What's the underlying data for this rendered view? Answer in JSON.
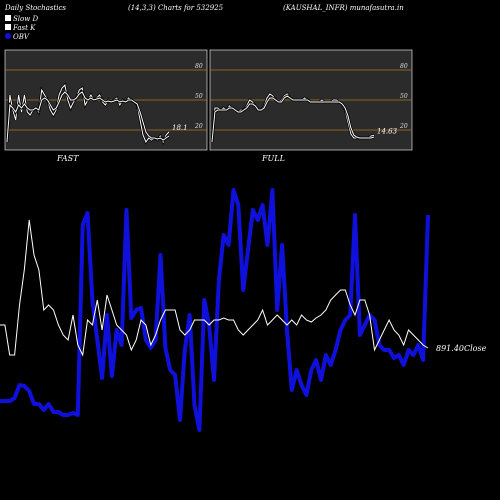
{
  "header": {
    "title": "Daily Stochastics",
    "params": "(14,3,3) Charts for 532925",
    "ticker": "(KAUSHAL_INFR) munafasutra.in"
  },
  "legend": [
    {
      "label": "Slow  D",
      "color": "#ffffff"
    },
    {
      "label": "Fast K",
      "color": "#ffffff"
    },
    {
      "label": "OBV",
      "color": "#1010dd"
    }
  ],
  "colors": {
    "background": "#000000",
    "panel": "#2b2b2b",
    "level_line": "#b07820",
    "line": "#ffffff",
    "obv": "#1010dd"
  },
  "chart_data": [
    {
      "type": "line",
      "title": "FAST",
      "ylim": [
        0,
        100
      ],
      "y_ticks": [
        20,
        50,
        80
      ],
      "x": [
        1,
        2,
        3,
        4,
        5,
        6,
        7,
        8,
        9,
        10,
        11,
        12,
        13,
        14,
        15,
        16,
        17,
        18,
        19,
        20,
        21,
        22,
        23,
        24,
        25,
        26,
        27,
        28,
        29,
        30,
        31,
        32,
        33,
        34,
        35,
        36,
        37,
        38,
        39,
        40,
        41,
        42,
        43,
        44,
        45,
        46,
        47,
        48,
        49,
        50,
        51,
        52,
        53,
        54,
        55,
        56,
        57
      ],
      "series": [
        {
          "name": "Fast K",
          "values": [
            8,
            55,
            40,
            30,
            55,
            38,
            55,
            38,
            35,
            40,
            42,
            38,
            60,
            55,
            50,
            40,
            35,
            40,
            55,
            62,
            65,
            50,
            42,
            48,
            52,
            60,
            62,
            45,
            50,
            55,
            50,
            52,
            55,
            48,
            45,
            50,
            48,
            50,
            52,
            45,
            50,
            48,
            52,
            50,
            48,
            45,
            30,
            15,
            8,
            12,
            10,
            12,
            10,
            14,
            8,
            15,
            18.1
          ]
        },
        {
          "name": "Slow  D",
          "values": [
            8,
            45,
            42,
            38,
            45,
            42,
            46,
            42,
            40,
            40,
            42,
            40,
            50,
            52,
            50,
            45,
            40,
            42,
            48,
            55,
            58,
            55,
            50,
            50,
            52,
            56,
            58,
            52,
            50,
            52,
            50,
            51,
            52,
            50,
            48,
            49,
            48,
            49,
            50,
            48,
            49,
            48,
            50,
            50,
            48,
            46,
            38,
            28,
            18,
            14,
            12,
            12,
            11,
            12,
            10,
            12,
            14
          ]
        }
      ],
      "annotations": [
        {
          "text": "18.1"
        }
      ]
    },
    {
      "type": "line",
      "title": "FULL",
      "ylim": [
        0,
        100
      ],
      "y_ticks": [
        20,
        50,
        80
      ],
      "x": [
        1,
        2,
        3,
        4,
        5,
        6,
        7,
        8,
        9,
        10,
        11,
        12,
        13,
        14,
        15,
        16,
        17,
        18,
        19,
        20,
        21,
        22,
        23,
        24,
        25,
        26,
        27,
        28,
        29,
        30,
        31,
        32,
        33,
        34,
        35,
        36,
        37,
        38,
        39,
        40,
        41,
        42,
        43,
        44,
        45,
        46,
        47,
        48,
        49,
        50,
        51,
        52,
        53,
        54,
        55,
        56,
        57
      ],
      "series": [
        {
          "name": "Fast K",
          "values": [
            8,
            42,
            42,
            40,
            42,
            40,
            44,
            42,
            40,
            38,
            40,
            40,
            44,
            50,
            48,
            44,
            40,
            40,
            44,
            52,
            56,
            54,
            50,
            48,
            50,
            54,
            56,
            52,
            50,
            50,
            50,
            50,
            52,
            50,
            48,
            48,
            48,
            48,
            50,
            48,
            48,
            48,
            50,
            50,
            48,
            46,
            40,
            28,
            16,
            12,
            12,
            12,
            12,
            12,
            12,
            14,
            14.63
          ]
        },
        {
          "name": "Slow  D",
          "values": [
            8,
            38,
            40,
            40,
            40,
            40,
            42,
            42,
            40,
            38,
            38,
            40,
            42,
            46,
            46,
            44,
            40,
            40,
            42,
            48,
            52,
            52,
            50,
            48,
            48,
            52,
            54,
            52,
            50,
            50,
            50,
            50,
            50,
            50,
            48,
            48,
            48,
            48,
            48,
            48,
            48,
            48,
            48,
            48,
            48,
            46,
            42,
            34,
            22,
            15,
            13,
            12,
            12,
            12,
            12,
            12,
            13
          ]
        }
      ],
      "annotations": [
        {
          "text": "14.63"
        }
      ]
    },
    {
      "type": "line",
      "x": [
        1,
        2,
        3,
        4,
        5,
        6,
        7,
        8,
        9,
        10,
        11,
        12,
        13,
        14,
        15,
        16,
        17,
        18,
        19,
        20,
        21,
        22,
        23,
        24,
        25,
        26,
        27,
        28,
        29,
        30,
        31,
        32,
        33,
        34,
        35,
        36,
        37,
        38,
        39,
        40,
        41,
        42,
        43,
        44,
        45,
        46,
        47,
        48,
        49,
        50,
        51,
        52,
        53,
        54,
        55,
        56,
        57,
        58,
        59,
        60,
        61,
        62,
        63,
        64,
        65,
        66,
        67,
        68,
        69,
        70,
        71,
        72,
        73,
        74,
        75,
        76,
        77,
        78,
        79,
        80,
        81,
        82,
        83,
        84,
        85,
        86,
        87,
        88,
        89
      ],
      "series": [
        {
          "name": "Price",
          "values": [
            325,
            325,
            355,
            355,
            305,
            270,
            220,
            255,
            270,
            310,
            305,
            310,
            325,
            335,
            340,
            315,
            345,
            355,
            320,
            325,
            300,
            330,
            295,
            310,
            325,
            330,
            335,
            350,
            340,
            320,
            325,
            345,
            335,
            320,
            310,
            310,
            310,
            330,
            335,
            330,
            320,
            320,
            320,
            325,
            320,
            320,
            318,
            320,
            320,
            330,
            335,
            330,
            325,
            320,
            310,
            325,
            320,
            315,
            320,
            325,
            320,
            325,
            315,
            320,
            322,
            318,
            315,
            310,
            300,
            295,
            290,
            290,
            305,
            315,
            300,
            300,
            315,
            350,
            340,
            330,
            320,
            330,
            335,
            345,
            330,
            335,
            340,
            345,
            348
          ]
        },
        {
          "name": "OBV",
          "values": [
            401,
            401,
            401,
            398,
            385,
            386,
            391,
            404,
            404,
            410,
            404,
            412,
            412,
            415,
            415,
            413,
            415,
            225,
            213,
            300,
            340,
            378,
            315,
            376,
            330,
            345,
            210,
            318,
            310,
            308,
            340,
            348,
            340,
            255,
            348,
            370,
            375,
            420,
            350,
            315,
            405,
            430,
            300,
            325,
            380,
            280,
            235,
            245,
            190,
            205,
            290,
            250,
            210,
            220,
            205,
            245,
            190,
            310,
            245,
            330,
            390,
            370,
            385,
            395,
            370,
            360,
            380,
            355,
            365,
            350,
            330,
            320,
            315,
            215,
            335,
            325,
            315,
            320,
            345,
            350,
            350,
            358,
            355,
            365,
            350,
            355,
            345,
            360,
            215
          ]
        }
      ],
      "annotations": [
        {
          "text": "891.40Close"
        }
      ]
    }
  ]
}
